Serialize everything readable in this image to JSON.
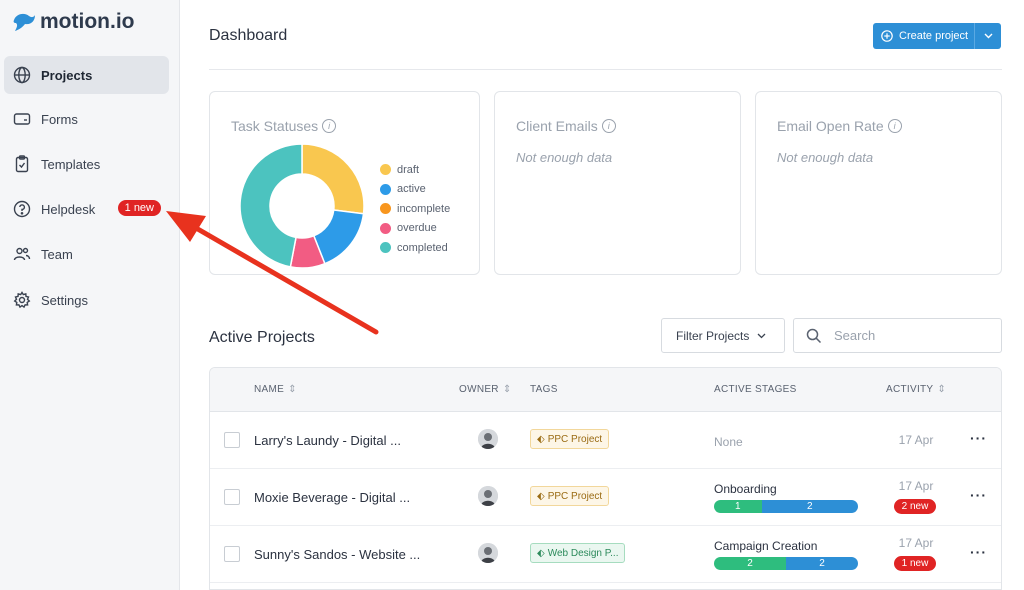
{
  "app": {
    "logo_text": "motion.io"
  },
  "sidebar": {
    "items": [
      {
        "label": "Projects",
        "icon": "globe-icon",
        "active": true
      },
      {
        "label": "Forms",
        "icon": "form-icon"
      },
      {
        "label": "Templates",
        "icon": "clipboard-icon"
      },
      {
        "label": "Helpdesk",
        "icon": "help-icon",
        "badge": "1 new"
      },
      {
        "label": "Team",
        "icon": "users-icon"
      },
      {
        "label": "Settings",
        "icon": "gear-icon"
      }
    ]
  },
  "header": {
    "title": "Dashboard",
    "create_label": "Create project"
  },
  "cards": {
    "task_statuses": {
      "title": "Task Statuses",
      "legend": [
        {
          "label": "draft",
          "color": "#f9c74f",
          "value": 27
        },
        {
          "label": "active",
          "color": "#2d9be8",
          "value": 17
        },
        {
          "label": "incomplete",
          "color": "#f8961e",
          "value": 0
        },
        {
          "label": "overdue",
          "color": "#f25c83",
          "value": 9
        },
        {
          "label": "completed",
          "color": "#4cc3bf",
          "value": 47
        }
      ]
    },
    "client_emails": {
      "title": "Client Emails",
      "nodata": "Not enough data"
    },
    "email_open_rate": {
      "title": "Email Open Rate",
      "nodata": "Not enough data"
    }
  },
  "projects": {
    "title": "Active Projects",
    "filter_label": "Filter Projects",
    "search_placeholder": "Search",
    "columns": {
      "name": "NAME",
      "owner": "OWNER",
      "tags": "TAGS",
      "stages": "ACTIVE STAGES",
      "activity": "ACTIVITY"
    },
    "rows": [
      {
        "name": "Larry's Laundy - Digital ...",
        "tag": "PPC Project",
        "stage": "None",
        "date": "17 Apr",
        "new": ""
      },
      {
        "name": "Moxie Beverage - Digital ...",
        "tag": "PPC Project",
        "stage": "Onboarding",
        "bar": [
          "1",
          "2"
        ],
        "date": "17 Apr",
        "new": "2 new"
      },
      {
        "name": "Sunny's Sandos - Website ...",
        "tag": "Web Design P...",
        "stage": "Campaign Creation",
        "bar": [
          "2",
          "2"
        ],
        "date": "17 Apr",
        "new": "1 new"
      }
    ]
  },
  "colors": {
    "accent": "#2d8fd6",
    "badge": "#e02424",
    "arrow": "#e8321e",
    "stage_green": "#2ebd7e",
    "stage_blue": "#2d8fd6"
  }
}
